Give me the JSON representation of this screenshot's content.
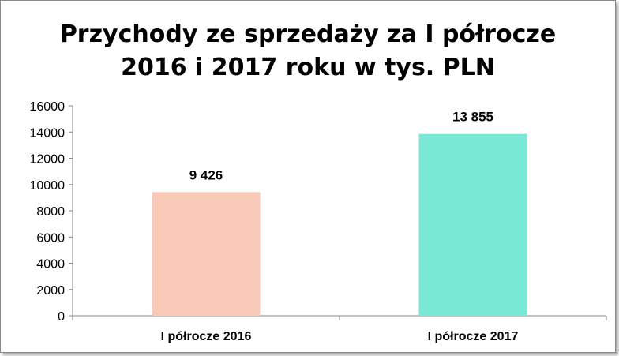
{
  "chart_data": {
    "type": "bar",
    "title_lines": [
      "Przychody ze sprzedaży za I półrocze",
      "2016 i 2017 roku w tys. PLN"
    ],
    "categories": [
      "I półrocze 2016",
      "I półrocze 2017"
    ],
    "values": [
      9426,
      13855
    ],
    "data_labels": [
      "9 426",
      "13 855"
    ],
    "bar_colors": [
      "#f8c9b6",
      "#79e9d6"
    ],
    "ylim": [
      0,
      16000
    ],
    "yticks": [
      0,
      2000,
      4000,
      6000,
      8000,
      10000,
      12000,
      14000,
      16000
    ],
    "ytick_labels": [
      "0",
      "2000",
      "4000",
      "6000",
      "8000",
      "10000",
      "12000",
      "14000",
      "16000"
    ],
    "grid": false,
    "legend": "none"
  }
}
